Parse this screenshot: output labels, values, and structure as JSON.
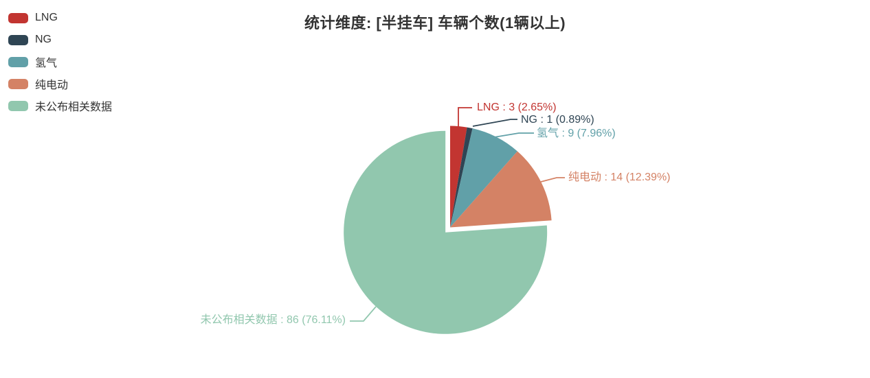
{
  "chart_data": {
    "type": "pie",
    "title": "统计维度: [半挂车] 车辆个数(1辆以上)",
    "total": 113,
    "legend_position": "top-left",
    "background": "#ffffff",
    "title_color": "#333333",
    "legend_text_color": "#333333",
    "series": [
      {
        "key": "lng",
        "name": "LNG",
        "value": 3,
        "percent": 2.65,
        "color": "#c23531",
        "label": "LNG : 3 (2.65%)",
        "selected": false
      },
      {
        "key": "ng",
        "name": "NG",
        "value": 1,
        "percent": 0.89,
        "color": "#2f4554",
        "label": "NG : 1 (0.89%)",
        "selected": false
      },
      {
        "key": "hydrogen",
        "name": "氢气",
        "value": 9,
        "percent": 7.96,
        "color": "#61a0a8",
        "label": "氢气 : 9 (7.96%)",
        "selected": false
      },
      {
        "key": "bev",
        "name": "纯电动",
        "value": 14,
        "percent": 12.39,
        "color": "#d48265",
        "label": "纯电动 : 14 (12.39%)",
        "selected": false
      },
      {
        "key": "undisclosed",
        "name": "未公布相关数据",
        "value": 86,
        "percent": 76.11,
        "color": "#91c7ae",
        "label": "未公布相关数据 : 86 (76.11%)",
        "selected": true
      }
    ]
  }
}
